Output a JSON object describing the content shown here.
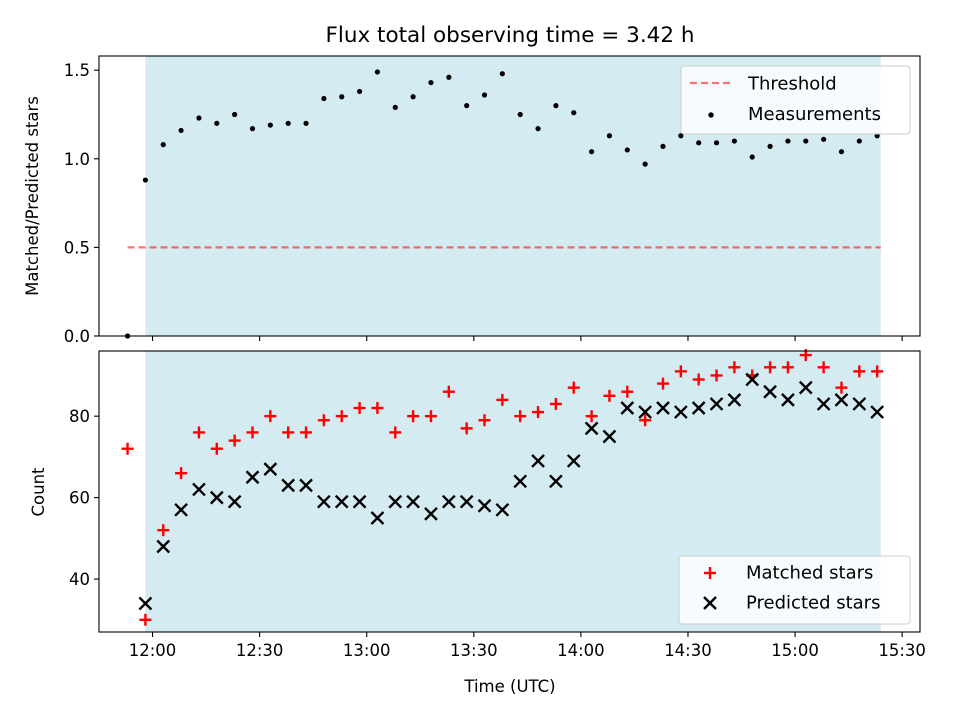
{
  "title": "Flux total observing time = 3.42 h",
  "colors": {
    "shade": "#add8e6",
    "threshold": "#ff0000",
    "measurements": "#000000",
    "matched": "#ff0000",
    "predicted": "#000000"
  },
  "chart_data": [
    {
      "type": "scatter",
      "panel": "top",
      "ylabel": "Matched/Predicted stars",
      "xlabel": "",
      "xlim": [
        "11:45",
        "15:35"
      ],
      "ylim": [
        0,
        1.58
      ],
      "xticks": [
        "12:00",
        "12:30",
        "13:00",
        "13:30",
        "14:00",
        "14:30",
        "15:00",
        "15:30"
      ],
      "yticks": [
        "0.0",
        "0.5",
        "1.0",
        "1.5"
      ],
      "shaded_span": [
        "11:58",
        "15:24"
      ],
      "legend_position": "upper right",
      "threshold": {
        "name": "Threshold",
        "value": 0.5,
        "x_range": [
          "11:53",
          "15:24"
        ],
        "style": "dashed"
      },
      "series": [
        {
          "name": "Measurements",
          "marker": "dot",
          "x": [
            "11:53",
            "11:58",
            "12:03",
            "12:08",
            "12:13",
            "12:18",
            "12:23",
            "12:28",
            "12:33",
            "12:38",
            "12:43",
            "12:48",
            "12:53",
            "12:58",
            "13:03",
            "13:08",
            "13:13",
            "13:18",
            "13:23",
            "13:28",
            "13:33",
            "13:38",
            "13:43",
            "13:48",
            "13:53",
            "13:58",
            "14:03",
            "14:08",
            "14:13",
            "14:18",
            "14:23",
            "14:28",
            "14:33",
            "14:38",
            "14:43",
            "14:48",
            "14:53",
            "14:58",
            "15:03",
            "15:08",
            "15:13",
            "15:18",
            "15:23"
          ],
          "y": [
            0.0,
            0.88,
            1.08,
            1.16,
            1.23,
            1.2,
            1.25,
            1.17,
            1.19,
            1.2,
            1.2,
            1.34,
            1.35,
            1.38,
            1.49,
            1.29,
            1.35,
            1.43,
            1.46,
            1.3,
            1.36,
            1.48,
            1.25,
            1.17,
            1.3,
            1.26,
            1.04,
            1.13,
            1.05,
            0.97,
            1.07,
            1.13,
            1.09,
            1.09,
            1.1,
            1.01,
            1.07,
            1.1,
            1.1,
            1.11,
            1.04,
            1.1,
            1.13
          ]
        }
      ]
    },
    {
      "type": "scatter",
      "panel": "bottom",
      "ylabel": "Count",
      "xlabel": "Time (UTC)",
      "xlim": [
        "11:45",
        "15:35"
      ],
      "ylim": [
        27,
        96
      ],
      "xticks": [
        "12:00",
        "12:30",
        "13:00",
        "13:30",
        "14:00",
        "14:30",
        "15:00",
        "15:30"
      ],
      "yticks": [
        "40",
        "60",
        "80"
      ],
      "shaded_span": [
        "11:58",
        "15:24"
      ],
      "legend_position": "lower right",
      "series": [
        {
          "name": "Matched stars",
          "marker": "plus",
          "x": [
            "11:53",
            "11:58",
            "12:03",
            "12:08",
            "12:13",
            "12:18",
            "12:23",
            "12:28",
            "12:33",
            "12:38",
            "12:43",
            "12:48",
            "12:53",
            "12:58",
            "13:03",
            "13:08",
            "13:13",
            "13:18",
            "13:23",
            "13:28",
            "13:33",
            "13:38",
            "13:43",
            "13:48",
            "13:53",
            "13:58",
            "14:03",
            "14:08",
            "14:13",
            "14:18",
            "14:23",
            "14:28",
            "14:33",
            "14:38",
            "14:43",
            "14:48",
            "14:53",
            "14:58",
            "15:03",
            "15:08",
            "15:13",
            "15:18",
            "15:23"
          ],
          "y": [
            72,
            30,
            52,
            66,
            76,
            72,
            74,
            76,
            80,
            76,
            76,
            79,
            80,
            82,
            82,
            76,
            80,
            80,
            86,
            77,
            79,
            84,
            80,
            81,
            83,
            87,
            80,
            85,
            86,
            79,
            88,
            91,
            89,
            90,
            92,
            90,
            92,
            92,
            95,
            92,
            87,
            91,
            91
          ]
        },
        {
          "name": "Predicted stars",
          "marker": "x",
          "x": [
            "11:58",
            "12:03",
            "12:08",
            "12:13",
            "12:18",
            "12:23",
            "12:28",
            "12:33",
            "12:38",
            "12:43",
            "12:48",
            "12:53",
            "12:58",
            "13:03",
            "13:08",
            "13:13",
            "13:18",
            "13:23",
            "13:28",
            "13:33",
            "13:38",
            "13:43",
            "13:48",
            "13:53",
            "13:58",
            "14:03",
            "14:08",
            "14:13",
            "14:18",
            "14:23",
            "14:28",
            "14:33",
            "14:38",
            "14:43",
            "14:48",
            "14:53",
            "14:58",
            "15:03",
            "15:08",
            "15:13",
            "15:18",
            "15:23"
          ],
          "y": [
            34,
            48,
            57,
            62,
            60,
            59,
            65,
            67,
            63,
            63,
            59,
            59,
            59,
            55,
            59,
            59,
            56,
            59,
            59,
            58,
            57,
            64,
            69,
            64,
            69,
            77,
            75,
            82,
            81,
            82,
            81,
            82,
            83,
            84,
            89,
            86,
            84,
            87,
            83,
            84,
            83,
            81
          ]
        }
      ]
    }
  ]
}
